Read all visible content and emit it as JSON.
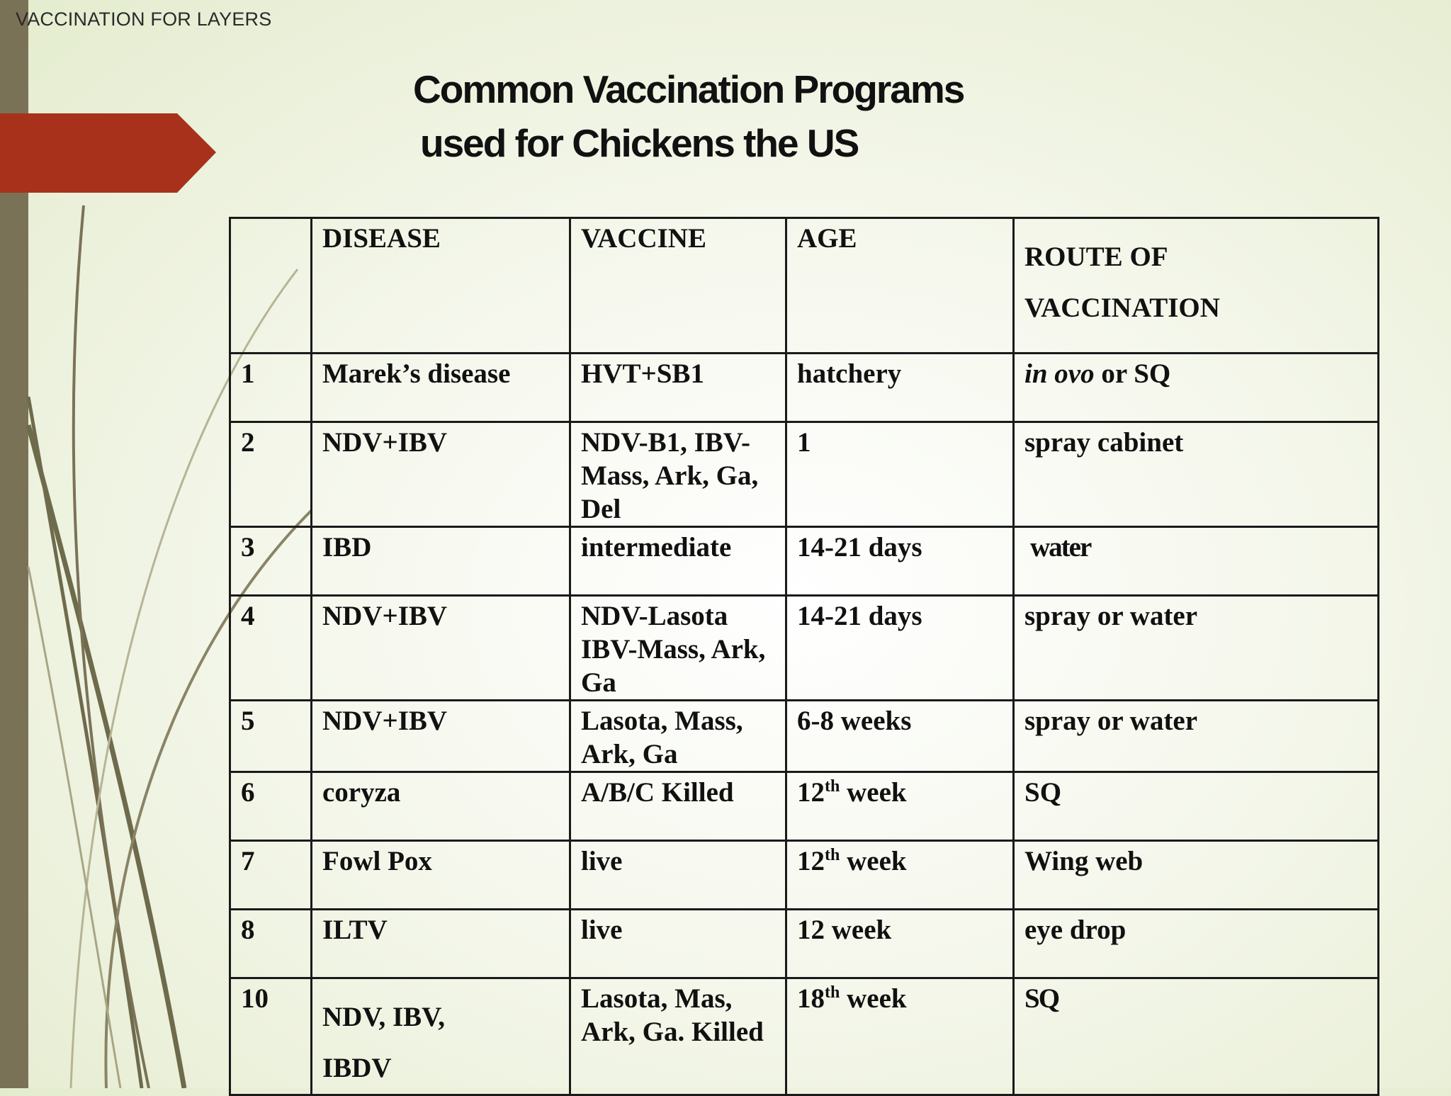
{
  "header": {
    "label": "VACCINATION FOR LAYERS"
  },
  "title": {
    "line1": "Common Vaccination Programs",
    "line2": "used for  Chickens  the US"
  },
  "table": {
    "headers": {
      "num": "",
      "disease": "DISEASE",
      "vaccine": "VACCINE",
      "age": "AGE",
      "route_line1": "ROUTE OF",
      "route_line2": "VACCINATION"
    },
    "rows": [
      {
        "num": "1",
        "disease": "Marek’s disease",
        "vaccine": "HVT+SB1",
        "age": "hatchery",
        "route_italic": "in ovo",
        "route": " or SQ"
      },
      {
        "num": "2",
        "disease": "NDV+IBV",
        "vaccine_l1": "NDV-B1, IBV-",
        "vaccine_l2": "Mass, Ark, Ga,",
        "vaccine_l3": "Del",
        "age": "1",
        "route": "spray cabinet"
      },
      {
        "num": "3",
        "disease": "IBD",
        "vaccine": "intermediate",
        "age": "14-21 days",
        "route": "water"
      },
      {
        "num": "4",
        "disease": "NDV+IBV",
        "vaccine_l1": "NDV-Lasota",
        "vaccine_l2": "IBV-Mass, Ark,",
        "vaccine_l3": "Ga",
        "age": "14-21 days",
        "route": "spray or water"
      },
      {
        "num": "5",
        "disease": "NDV+IBV",
        "vaccine_l1": "Lasota, Mass,",
        "vaccine_l2": "Ark, Ga",
        "age": "6-8 weeks",
        "route": "spray or water"
      },
      {
        "num": "6",
        "disease": "coryza",
        "vaccine": "A/B/C Killed",
        "age_num": "12",
        "age_sup": "th",
        "age_unit": " week",
        "route": "SQ"
      },
      {
        "num": "7",
        "disease": "Fowl Pox",
        "vaccine": "live",
        "age_num": "12",
        "age_sup": "th",
        "age_unit": " week",
        "route": "Wing web"
      },
      {
        "num": "8",
        "disease": "ILTV",
        "vaccine": "live",
        "age": "12 week",
        "route": "eye drop"
      },
      {
        "num": "10",
        "disease_l1": "NDV, IBV,",
        "disease_l2": "IBDV",
        "vaccine_l1": "Lasota, Mas,",
        "vaccine_l2": "Ark, Ga. Killed",
        "age_num": "18",
        "age_sup": "th",
        "age_unit": " week",
        "route": "SQ"
      }
    ]
  },
  "colors": {
    "accent_red": "#a8311b",
    "side_bar": "#7a7257",
    "curve": "#6e6a4c"
  }
}
